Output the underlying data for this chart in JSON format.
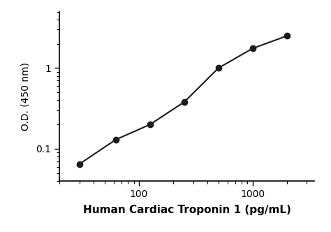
{
  "x": [
    30,
    62.5,
    125,
    250,
    500,
    1000,
    2000
  ],
  "y": [
    0.065,
    0.13,
    0.2,
    0.38,
    1.0,
    1.75,
    2.5
  ],
  "xlabel": "Human Cardiac Troponin 1 (pg/mL)",
  "ylabel": "O.D. (450 nm)",
  "xlim": [
    20,
    3500
  ],
  "ylim": [
    0.04,
    5.0
  ],
  "line_color": "#1a1a1a",
  "marker_color": "#1a1a1a",
  "marker_size": 6,
  "linewidth": 1.5,
  "background_color": "#ffffff",
  "xlabel_fontsize": 11,
  "ylabel_fontsize": 10,
  "tick_fontsize": 10
}
